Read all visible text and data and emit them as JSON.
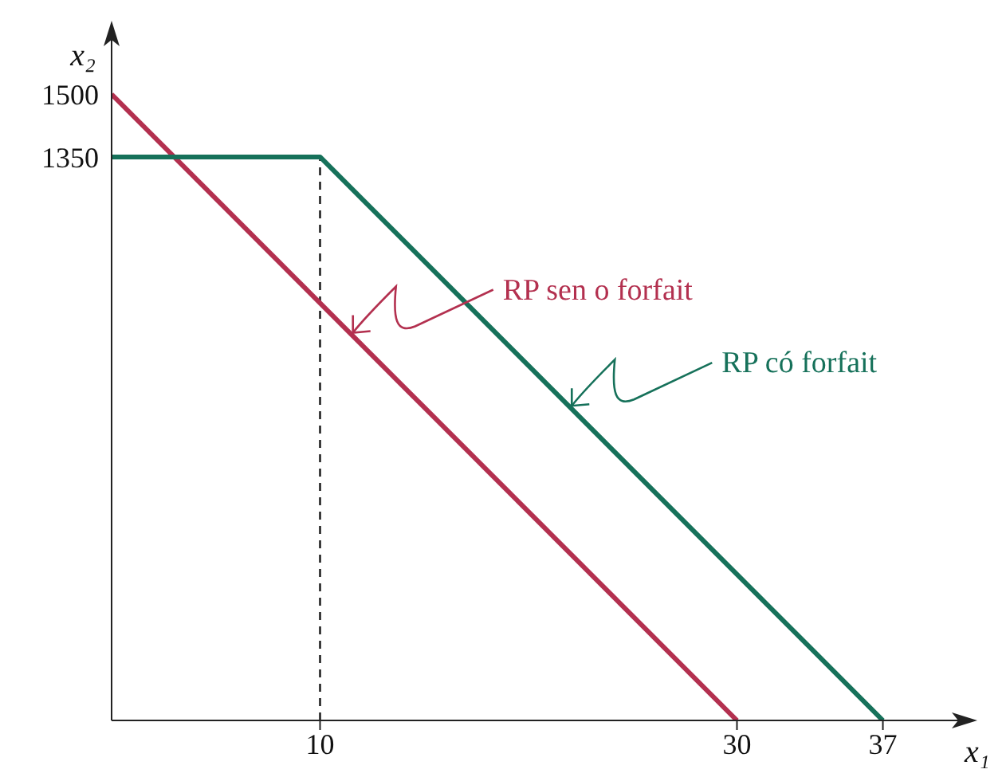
{
  "chart_data": {
    "type": "line",
    "xlabel": "x₁",
    "ylabel": "x₂",
    "xlim": [
      0,
      40
    ],
    "ylim": [
      0,
      1600
    ],
    "xticks": [
      10,
      30,
      37
    ],
    "yticks": [
      1350,
      1500
    ],
    "grid": false,
    "marker": "none",
    "series": [
      {
        "color": "#b3304f",
        "x": [
          0,
          30
        ],
        "values": [
          1500,
          0
        ]
      },
      {
        "color": "#16715a",
        "x": [
          0,
          10,
          37
        ],
        "values": [
          1350,
          1350,
          0
        ]
      }
    ],
    "ref_lines": [
      {
        "axis": "x",
        "value": 10,
        "color": "#222222",
        "line_style": "dashed"
      }
    ],
    "annotations": [
      {
        "text": "RP sen o forfait",
        "x": 11.5,
        "y": 925
      },
      {
        "text": "RP có forfait",
        "x": 22,
        "y": 750
      }
    ]
  }
}
